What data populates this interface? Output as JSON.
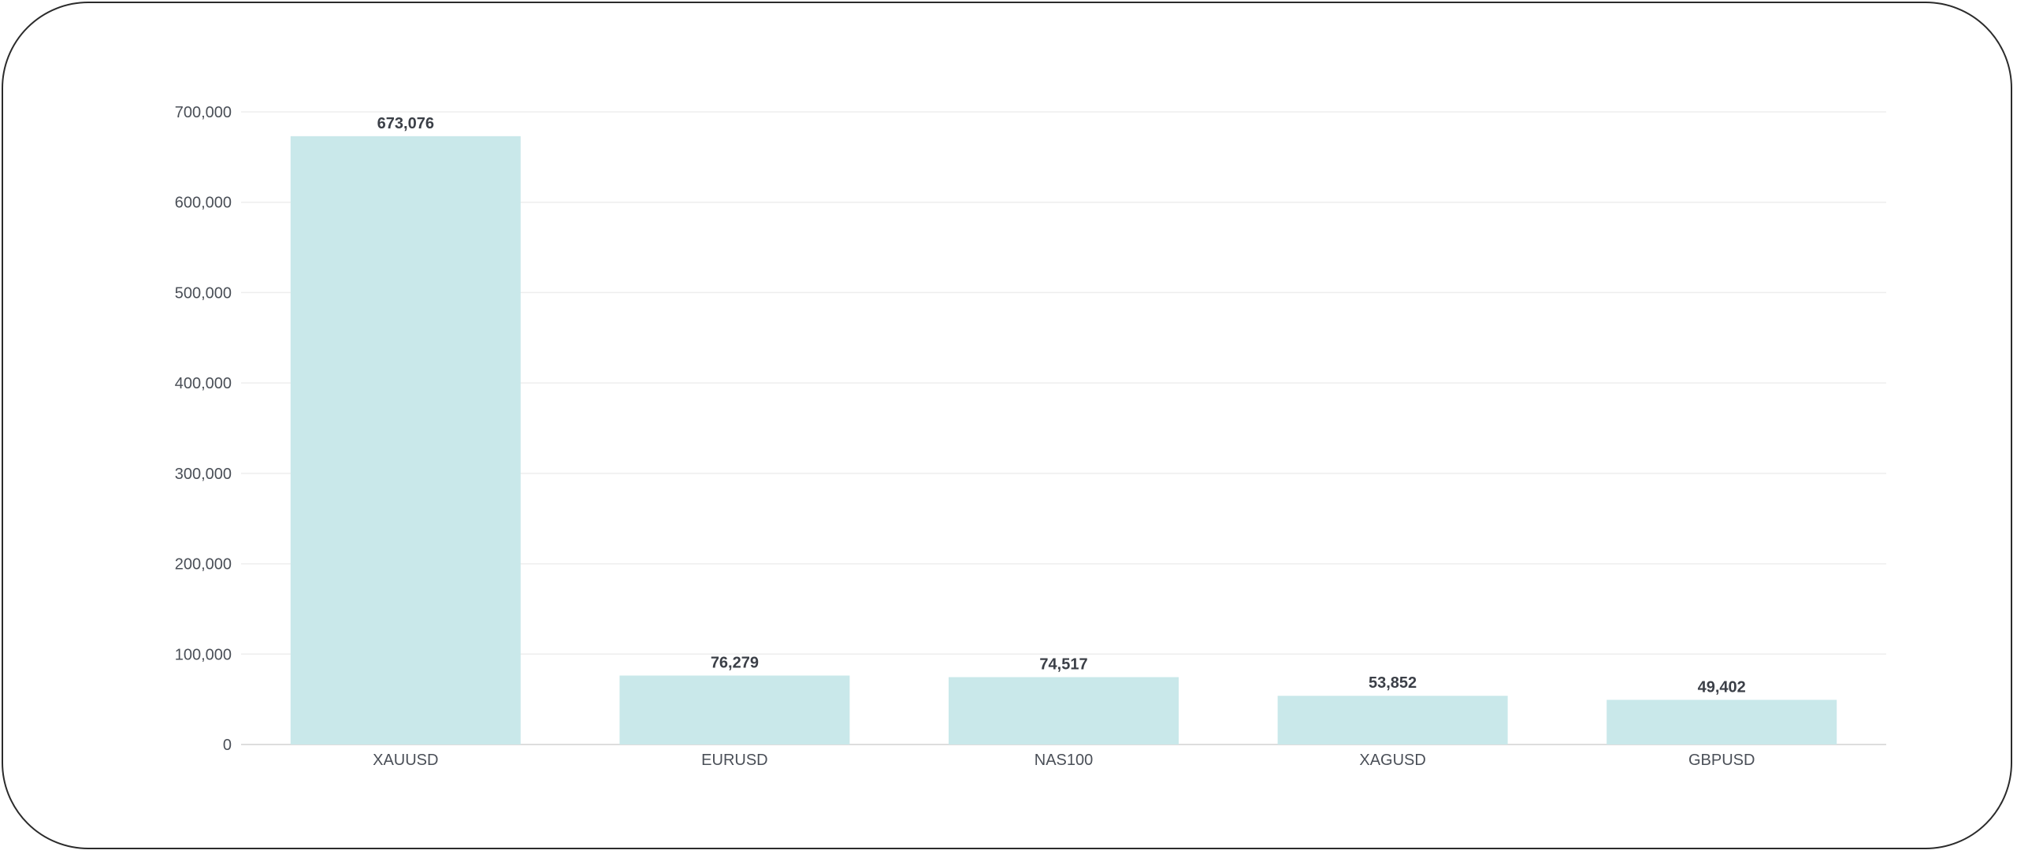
{
  "chart_data": {
    "type": "bar",
    "categories": [
      "XAUUSD",
      "EURUSD",
      "NAS100",
      "XAGUSD",
      "GBPUSD"
    ],
    "values": [
      673076,
      76279,
      74517,
      53852,
      49402
    ],
    "data_labels": [
      "673,076",
      "76,279",
      "74,517",
      "53,852",
      "49,402"
    ],
    "title": "",
    "xlabel": "",
    "ylabel": "",
    "ylim": [
      0,
      700000
    ],
    "yticks": [
      0,
      100000,
      200000,
      300000,
      400000,
      500000,
      600000,
      700000
    ],
    "ytick_labels": [
      "0",
      "100,000",
      "200,000",
      "300,000",
      "400,000",
      "500,000",
      "600,000",
      "700,000"
    ],
    "grid": true,
    "legend": "none",
    "colors": {
      "bar": "#c9e8ea",
      "grid": "#eeeeee",
      "axis": "#dddddd"
    }
  }
}
